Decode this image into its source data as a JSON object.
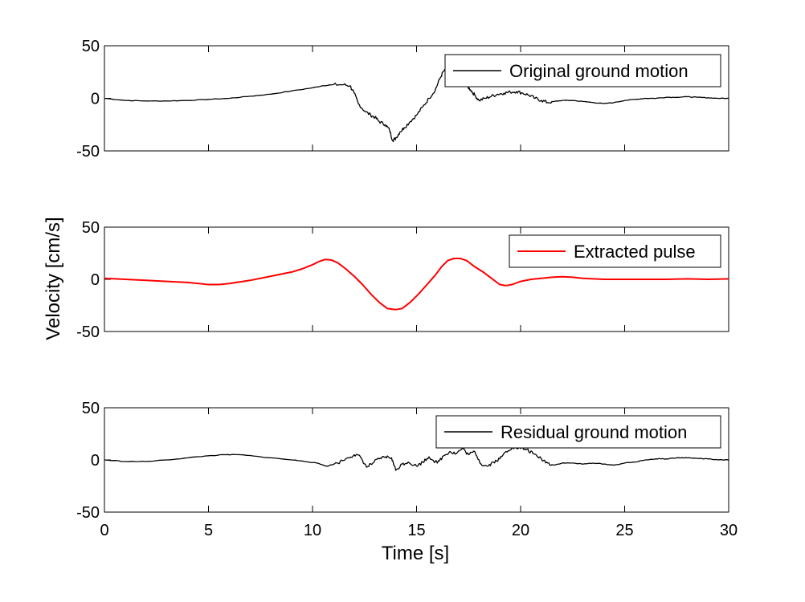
{
  "figure": {
    "ylabel": "Velocity [cm/s]",
    "xlabel": "Time [s]"
  },
  "chart_data": [
    {
      "type": "line",
      "legend": "Original ground motion",
      "color": "#000000",
      "xlim": [
        0,
        30
      ],
      "ylim": [
        -50,
        50
      ],
      "xticks": [
        0,
        5,
        10,
        15,
        20,
        25,
        30
      ],
      "yticks": [
        -50,
        0,
        50
      ],
      "x_ticklabels_visible": false,
      "legend_position": "top-right",
      "grid": false,
      "series": [
        {
          "name": "Original ground motion",
          "x": [
            0,
            1,
            2,
            3,
            4,
            5,
            6,
            7,
            8,
            9,
            10,
            10.5,
            11,
            11.5,
            11.8,
            12,
            12.2,
            12.5,
            12.8,
            13.0,
            13.2,
            13.5,
            13.7,
            13.85,
            14.0,
            14.2,
            14.4,
            14.7,
            15.0,
            15.3,
            15.6,
            15.9,
            16.1,
            16.3,
            16.5,
            16.7,
            16.85,
            17.0,
            17.2,
            17.4,
            17.6,
            17.8,
            18.0,
            18.3,
            18.6,
            18.9,
            19.2,
            19.5,
            19.8,
            20.1,
            20.4,
            20.7,
            21.0,
            21.3,
            21.6,
            22.0,
            22.5,
            23.0,
            23.5,
            24.0,
            24.5,
            25.0,
            25.5,
            26.0,
            26.5,
            27.0,
            27.5,
            28.0,
            28.5,
            29.0,
            29.5,
            30.0
          ],
          "values": [
            0,
            -2,
            -2.5,
            -2.5,
            -2,
            -1,
            0,
            2,
            4,
            7,
            10,
            12,
            13,
            13,
            12,
            5,
            -5,
            -12,
            -16,
            -18,
            -22,
            -25,
            -30,
            -40,
            -38,
            -32,
            -28,
            -22,
            -16,
            -8,
            0,
            8,
            18,
            26,
            28,
            26,
            22,
            25,
            18,
            12,
            8,
            3,
            -2,
            0,
            2,
            4,
            5,
            6,
            6.5,
            5,
            3,
            0,
            -2,
            -4,
            -3,
            -2,
            -2,
            -3,
            -4,
            -5,
            -4,
            -2,
            -1,
            0,
            0,
            1,
            1,
            1.5,
            1,
            0.5,
            0,
            0
          ]
        }
      ]
    },
    {
      "type": "line",
      "legend": "Extracted pulse",
      "color": "#ff0000",
      "xlim": [
        0,
        30
      ],
      "ylim": [
        -50,
        50
      ],
      "xticks": [
        0,
        5,
        10,
        15,
        20,
        25,
        30
      ],
      "yticks": [
        -50,
        0,
        50
      ],
      "x_ticklabels_visible": false,
      "legend_position": "top-right",
      "grid": false,
      "series": [
        {
          "name": "Extracted pulse",
          "x": [
            0,
            1,
            2,
            3,
            4,
            5,
            5.5,
            6,
            7,
            8,
            9,
            9.5,
            10,
            10.3,
            10.6,
            10.9,
            11.2,
            11.6,
            12.0,
            12.4,
            12.8,
            13.2,
            13.6,
            14.0,
            14.3,
            14.7,
            15.1,
            15.5,
            15.9,
            16.2,
            16.5,
            16.8,
            17.1,
            17.4,
            17.8,
            18.2,
            18.6,
            19.0,
            19.3,
            19.6,
            20.0,
            20.5,
            21.0,
            21.5,
            22.0,
            22.5,
            23.0,
            24.0,
            25.0,
            26.0,
            27.0,
            28.0,
            29.0,
            30.0
          ],
          "values": [
            1,
            0,
            -1,
            -2,
            -3,
            -5,
            -5,
            -4,
            -1,
            3,
            7,
            10,
            14,
            17,
            19,
            18.5,
            16,
            10,
            3,
            -5,
            -14,
            -22,
            -28,
            -29,
            -28,
            -22,
            -14,
            -5,
            4,
            12,
            18,
            20,
            20,
            18,
            12,
            7,
            1,
            -5,
            -6,
            -5,
            -2,
            0,
            1,
            2,
            2.5,
            2,
            1,
            0,
            0,
            0,
            0,
            0.5,
            0,
            0.5
          ]
        }
      ]
    },
    {
      "type": "line",
      "legend": "Residual ground motion",
      "color": "#000000",
      "xlim": [
        0,
        30
      ],
      "ylim": [
        -50,
        50
      ],
      "xticks": [
        0,
        5,
        10,
        15,
        20,
        25,
        30
      ],
      "yticks": [
        -50,
        0,
        50
      ],
      "xticklabels": [
        "0",
        "5",
        "10",
        "15",
        "20",
        "25",
        "30"
      ],
      "x_ticklabels_visible": true,
      "legend_position": "top-right",
      "grid": false,
      "series": [
        {
          "name": "Residual ground motion",
          "x": [
            0,
            1,
            2,
            3,
            4,
            5,
            5.8,
            6.5,
            7.5,
            8.5,
            9.5,
            10.2,
            10.7,
            11.2,
            11.7,
            12.0,
            12.3,
            12.6,
            12.9,
            13.2,
            13.5,
            13.8,
            14.0,
            14.3,
            14.6,
            15.0,
            15.3,
            15.6,
            16.0,
            16.3,
            16.6,
            16.9,
            17.2,
            17.5,
            17.8,
            18.1,
            18.4,
            18.7,
            19.0,
            19.3,
            19.6,
            20.0,
            20.3,
            20.6,
            21.0,
            21.3,
            21.6,
            22.0,
            22.5,
            23.0,
            23.5,
            24.0,
            24.5,
            25.0,
            25.5,
            26.0,
            26.5,
            27.0,
            27.5,
            28.0,
            28.5,
            29.0,
            29.5,
            30.0
          ],
          "values": [
            0,
            -1.5,
            -1.5,
            0,
            2,
            4,
            5,
            5,
            3,
            1,
            -1,
            -3,
            -6,
            -3,
            2,
            5,
            3,
            -7,
            -3,
            1,
            3,
            2,
            -10,
            -4,
            -2,
            -6,
            -2,
            3,
            -3,
            4,
            8,
            6,
            11,
            5,
            8,
            -4,
            -6,
            -2,
            1,
            8,
            12,
            11,
            10,
            6,
            1,
            -3,
            -5,
            -3,
            -3,
            -4,
            -3,
            -4,
            -5,
            -3,
            -2,
            0,
            1,
            1,
            2,
            2,
            1.5,
            1,
            0,
            0
          ]
        }
      ]
    }
  ]
}
